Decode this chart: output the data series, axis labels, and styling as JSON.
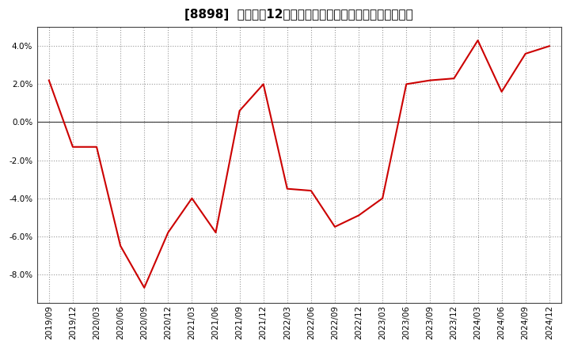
{
  "title": "[8898]  売上高の12か月移動合計の対前年同期増減率の推移",
  "x_labels": [
    "2019/09",
    "2019/12",
    "2020/03",
    "2020/06",
    "2020/09",
    "2020/12",
    "2021/03",
    "2021/06",
    "2021/09",
    "2021/12",
    "2022/03",
    "2022/06",
    "2022/09",
    "2022/12",
    "2023/03",
    "2023/06",
    "2023/09",
    "2023/12",
    "2024/03",
    "2024/06",
    "2024/09",
    "2024/12"
  ],
  "y_values": [
    2.2,
    -1.3,
    -1.3,
    -6.5,
    -8.7,
    -5.8,
    -4.0,
    -5.8,
    0.6,
    2.0,
    -3.5,
    -3.6,
    -5.5,
    -4.9,
    -4.0,
    2.0,
    2.2,
    2.3,
    4.3,
    1.6,
    3.6,
    4.0
  ],
  "line_color": "#cc0000",
  "background_color": "#ffffff",
  "plot_bg_color": "#ffffff",
  "grid_color": "#999999",
  "zero_line_color": "#444444",
  "border_color": "#444444",
  "ylim": [
    -9.5,
    5.0
  ],
  "yticks": [
    -8.0,
    -6.0,
    -4.0,
    -2.0,
    0.0,
    2.0,
    4.0
  ],
  "title_fontsize": 11,
  "tick_fontsize": 7.5
}
